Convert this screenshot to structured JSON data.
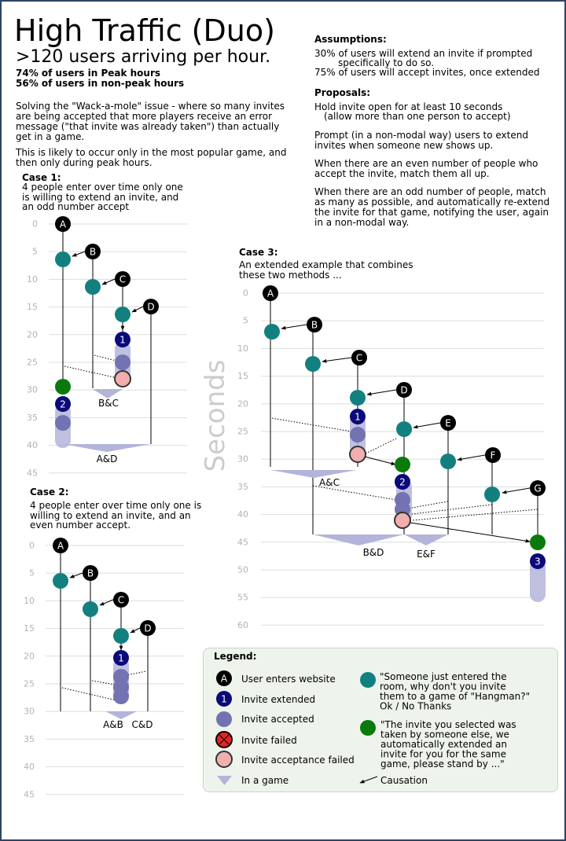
{
  "header": {
    "title": "High Traffic  (Duo)",
    "subtitle": ">120 users arriving per hour.",
    "stat_peak": "74% of users in Peak hours",
    "stat_nonpeak": "56% of users in non-peak hours"
  },
  "intro": {
    "p1": "Solving the \"Wack-a-mole\" issue - where so many invites are being accepted that more players receive an error message (\"that invite was already taken\") than actually get in a game.",
    "p2": "This is likely to occur only in the most popular game, and then only during peak hours."
  },
  "assumptions": {
    "heading": "Assumptions:",
    "line1a": "30% of users will extend an invite if prompted",
    "line1b": "specifically to do so.",
    "line2": "75% of users will accept invites, once extended"
  },
  "proposals": {
    "heading": "Proposals:",
    "p1a": "Hold invite open for at least 10 seconds",
    "p1b": "(allow more than one person to accept)",
    "p2": "Prompt (in a non-modal way) users to extend invites when someone new shows up.",
    "p3": "When there are an even number of people who accept the invite, match them all up.",
    "p4": "When there are an odd number of people, match as many as possible, and automatically re-extend the invite for that game, notifying the user, again in a non-modal way."
  },
  "cases": {
    "case1": {
      "title": "Case 1:",
      "desc": "4 people enter over time only one is willing to extend an invite, and an odd number accept",
      "ticks": [
        "0",
        "5",
        "10",
        "15",
        "20",
        "25",
        "30",
        "35",
        "40",
        "45"
      ],
      "users": [
        "A",
        "B",
        "C",
        "D"
      ],
      "invites": [
        "1",
        "2"
      ],
      "games": [
        "B&C",
        "A&D"
      ]
    },
    "case2": {
      "title": "Case 2:",
      "desc": "4 people enter over time only one is willing to extend an invite, and an even number accept.",
      "ticks": [
        "0",
        "5",
        "10",
        "15",
        "20",
        "25",
        "30",
        "35",
        "40",
        "45"
      ],
      "users": [
        "A",
        "B",
        "C",
        "D"
      ],
      "invites": [
        "1"
      ],
      "games": [
        "A&B",
        "C&D"
      ]
    },
    "case3": {
      "title": "Case 3:",
      "desc": "An extended example that combines these two methods ...",
      "ticks": [
        "0",
        "5",
        "10",
        "15",
        "20",
        "25",
        "30",
        "35",
        "40",
        "45",
        "50",
        "55",
        "60"
      ],
      "users": [
        "A",
        "B",
        "C",
        "D",
        "E",
        "F",
        "G"
      ],
      "invites": [
        "1",
        "2",
        "3"
      ],
      "games": [
        "A&C",
        "B&D",
        "E&F"
      ]
    }
  },
  "axis_label": "Seconds",
  "legend": {
    "title": "Legend:",
    "user_enters": "User enters website",
    "user_marker": "A",
    "invite_extended": "Invite extended",
    "invite_marker": "1",
    "invite_accepted": "Invite accepted",
    "invite_failed": "Invite failed",
    "accept_failed": "Invite acceptance failed",
    "in_game": "In a game",
    "prompt_text": "\"Someone just entered the room,  why don't you invite them to a game  of \"Hangman?\"   Ok / No Thanks",
    "auto_text": "\"The invite you selected was taken by someone else, we automatically extended an invite for you for the same game, please stand by ...\"",
    "causation": "Causation"
  },
  "colors": {
    "user": "#000000",
    "invite": "#0a0a7a",
    "accepted": "#7373b3",
    "prompt": "#138080",
    "auto": "#0a7a0a",
    "acceptance_failed": "#f2aeae",
    "failed": "#e32626",
    "game": "#b4b4da",
    "grid": "#dddddd",
    "tick": "#b3b3b3",
    "legend_bg": "#eef4ec"
  }
}
